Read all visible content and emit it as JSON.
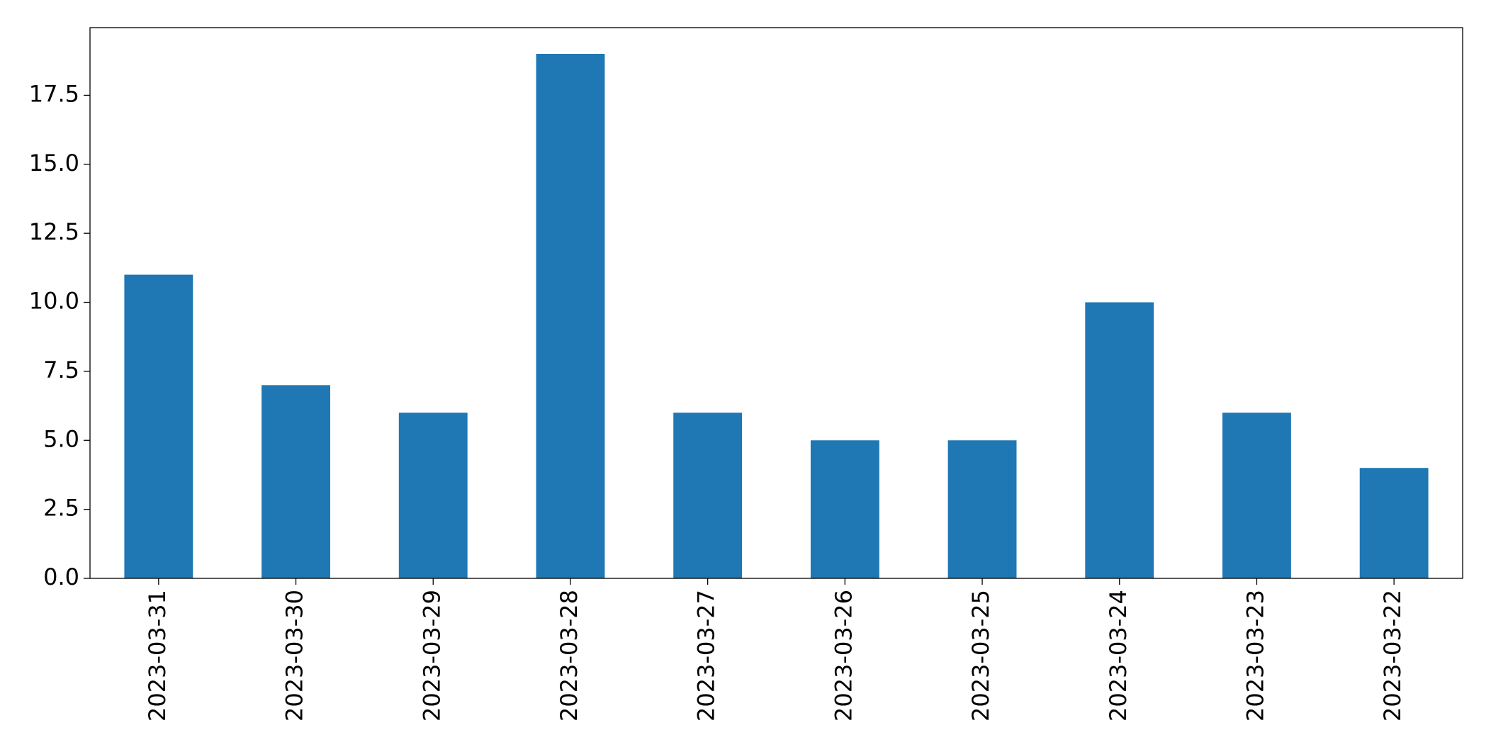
{
  "chart_data": {
    "type": "bar",
    "categories": [
      "2023-03-31",
      "2023-03-30",
      "2023-03-29",
      "2023-03-28",
      "2023-03-27",
      "2023-03-26",
      "2023-03-25",
      "2023-03-24",
      "2023-03-23",
      "2023-03-22"
    ],
    "values": [
      11,
      7,
      6,
      19,
      6,
      5,
      5,
      10,
      6,
      4
    ],
    "color": "#1f77b4",
    "ylim": [
      0,
      19.95
    ],
    "yticks": [
      {
        "value": 0,
        "label": "0.0"
      },
      2.5,
      {
        "value": 5,
        "label": "5.0"
      },
      7.5,
      {
        "value": 10,
        "label": "10.0"
      },
      12.5,
      {
        "value": 15,
        "label": "15.0"
      },
      17.5
    ],
    "grid": false
  }
}
